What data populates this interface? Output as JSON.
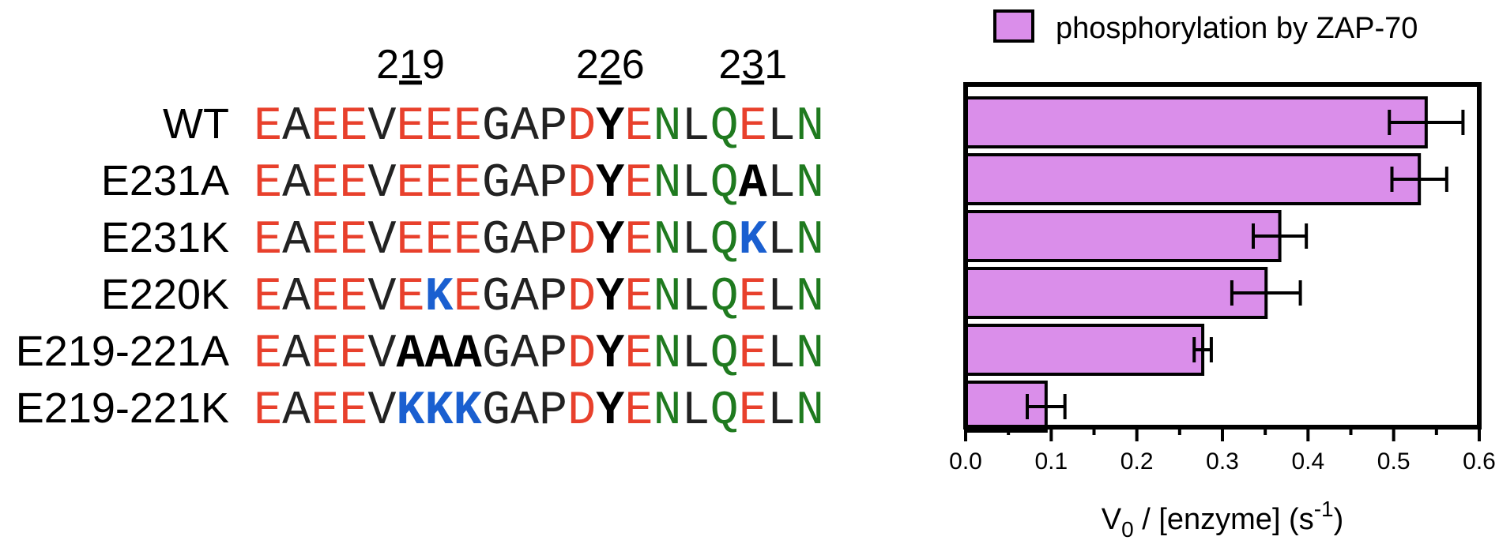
{
  "chart_data": {
    "type": "bar",
    "orientation": "horizontal",
    "categories": [
      "WT",
      "E231A",
      "E231K",
      "E220K",
      "E219-221A",
      "E219-221K"
    ],
    "series": [
      {
        "name": "phosphorylation by ZAP-70",
        "values": [
          0.538,
          0.53,
          0.367,
          0.351,
          0.277,
          0.094
        ],
        "errors": [
          0.043,
          0.032,
          0.031,
          0.04,
          0.01,
          0.022
        ]
      }
    ],
    "xlabel": {
      "main": "V",
      "sub": "0",
      "mid": " / [enzyme] (s",
      "sup": "-1",
      "end": ")"
    },
    "xlim": [
      0,
      0.6
    ],
    "xticks": [
      "0.0",
      "0.1",
      "0.2",
      "0.3",
      "0.4",
      "0.5",
      "0.6"
    ],
    "legend": "top-right",
    "grid": false,
    "bar_color": "#da8eea",
    "colors": {
      "acidic": "#e8402c",
      "neutral": "#222222",
      "polar": "#1f7a1f",
      "mutation_charge": "#1a5fd0",
      "mutation_neutral": "#000000"
    }
  },
  "positions": [
    {
      "pre": "2",
      "mid": "1",
      "post": "9",
      "index": 5
    },
    {
      "pre": "2",
      "mid": "2",
      "post": "6",
      "index": 12
    },
    {
      "pre": "2",
      "mid": "3",
      "post": "1",
      "index": 17
    }
  ],
  "sequences": [
    {
      "label": "WT",
      "residues": [
        [
          "E",
          "a"
        ],
        [
          "A",
          "n"
        ],
        [
          "E",
          "a"
        ],
        [
          "E",
          "a"
        ],
        [
          "V",
          "n"
        ],
        [
          "E",
          "a"
        ],
        [
          "E",
          "a"
        ],
        [
          "E",
          "a"
        ],
        [
          "G",
          "n"
        ],
        [
          "A",
          "n"
        ],
        [
          "P",
          "n"
        ],
        [
          "D",
          "a"
        ],
        [
          "Y",
          "y"
        ],
        [
          "E",
          "a"
        ],
        [
          "N",
          "p"
        ],
        [
          "L",
          "n"
        ],
        [
          "Q",
          "p"
        ],
        [
          "E",
          "a"
        ],
        [
          "L",
          "n"
        ],
        [
          "N",
          "p"
        ]
      ]
    },
    {
      "label": "E231A",
      "residues": [
        [
          "E",
          "a"
        ],
        [
          "A",
          "n"
        ],
        [
          "E",
          "a"
        ],
        [
          "E",
          "a"
        ],
        [
          "V",
          "n"
        ],
        [
          "E",
          "a"
        ],
        [
          "E",
          "a"
        ],
        [
          "E",
          "a"
        ],
        [
          "G",
          "n"
        ],
        [
          "A",
          "n"
        ],
        [
          "P",
          "n"
        ],
        [
          "D",
          "a"
        ],
        [
          "Y",
          "y"
        ],
        [
          "E",
          "a"
        ],
        [
          "N",
          "p"
        ],
        [
          "L",
          "n"
        ],
        [
          "Q",
          "p"
        ],
        [
          "A",
          "m"
        ],
        [
          "L",
          "n"
        ],
        [
          "N",
          "p"
        ]
      ]
    },
    {
      "label": "E231K",
      "residues": [
        [
          "E",
          "a"
        ],
        [
          "A",
          "n"
        ],
        [
          "E",
          "a"
        ],
        [
          "E",
          "a"
        ],
        [
          "V",
          "n"
        ],
        [
          "E",
          "a"
        ],
        [
          "E",
          "a"
        ],
        [
          "E",
          "a"
        ],
        [
          "G",
          "n"
        ],
        [
          "A",
          "n"
        ],
        [
          "P",
          "n"
        ],
        [
          "D",
          "a"
        ],
        [
          "Y",
          "y"
        ],
        [
          "E",
          "a"
        ],
        [
          "N",
          "p"
        ],
        [
          "L",
          "n"
        ],
        [
          "Q",
          "p"
        ],
        [
          "K",
          "k"
        ],
        [
          "L",
          "n"
        ],
        [
          "N",
          "p"
        ]
      ]
    },
    {
      "label": "E220K",
      "residues": [
        [
          "E",
          "a"
        ],
        [
          "A",
          "n"
        ],
        [
          "E",
          "a"
        ],
        [
          "E",
          "a"
        ],
        [
          "V",
          "n"
        ],
        [
          "E",
          "a"
        ],
        [
          "K",
          "k"
        ],
        [
          "E",
          "a"
        ],
        [
          "G",
          "n"
        ],
        [
          "A",
          "n"
        ],
        [
          "P",
          "n"
        ],
        [
          "D",
          "a"
        ],
        [
          "Y",
          "y"
        ],
        [
          "E",
          "a"
        ],
        [
          "N",
          "p"
        ],
        [
          "L",
          "n"
        ],
        [
          "Q",
          "p"
        ],
        [
          "E",
          "a"
        ],
        [
          "L",
          "n"
        ],
        [
          "N",
          "p"
        ]
      ]
    },
    {
      "label": "E219-221A",
      "residues": [
        [
          "E",
          "a"
        ],
        [
          "A",
          "n"
        ],
        [
          "E",
          "a"
        ],
        [
          "E",
          "a"
        ],
        [
          "V",
          "n"
        ],
        [
          "A",
          "m"
        ],
        [
          "A",
          "m"
        ],
        [
          "A",
          "m"
        ],
        [
          "G",
          "n"
        ],
        [
          "A",
          "n"
        ],
        [
          "P",
          "n"
        ],
        [
          "D",
          "a"
        ],
        [
          "Y",
          "y"
        ],
        [
          "E",
          "a"
        ],
        [
          "N",
          "p"
        ],
        [
          "L",
          "n"
        ],
        [
          "Q",
          "p"
        ],
        [
          "E",
          "a"
        ],
        [
          "L",
          "n"
        ],
        [
          "N",
          "p"
        ]
      ]
    },
    {
      "label": "E219-221K",
      "residues": [
        [
          "E",
          "a"
        ],
        [
          "A",
          "n"
        ],
        [
          "E",
          "a"
        ],
        [
          "E",
          "a"
        ],
        [
          "V",
          "n"
        ],
        [
          "K",
          "k"
        ],
        [
          "K",
          "k"
        ],
        [
          "K",
          "k"
        ],
        [
          "G",
          "n"
        ],
        [
          "A",
          "n"
        ],
        [
          "P",
          "n"
        ],
        [
          "D",
          "a"
        ],
        [
          "Y",
          "y"
        ],
        [
          "E",
          "a"
        ],
        [
          "N",
          "p"
        ],
        [
          "L",
          "n"
        ],
        [
          "Q",
          "p"
        ],
        [
          "E",
          "a"
        ],
        [
          "L",
          "n"
        ],
        [
          "N",
          "p"
        ]
      ]
    }
  ]
}
